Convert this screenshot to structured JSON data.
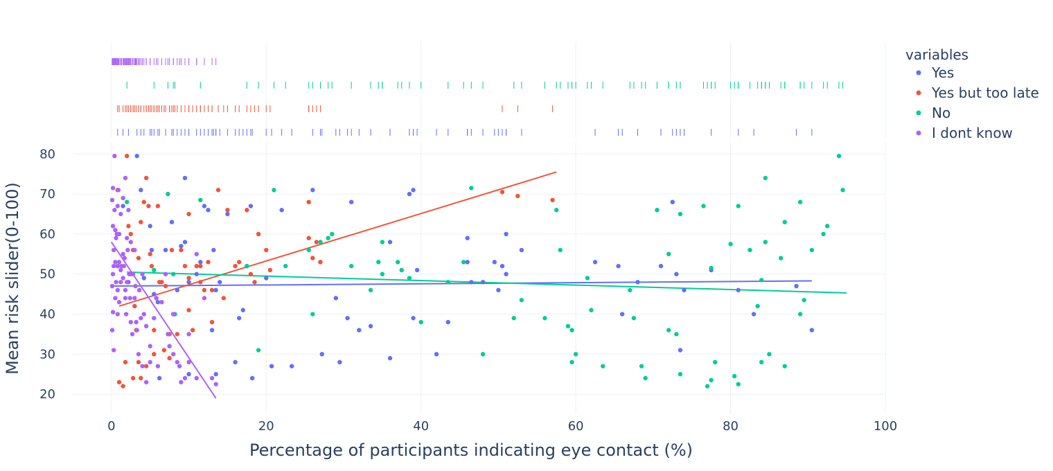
{
  "chart_data": {
    "type": "scatter",
    "xlabel": "Percentage of participants indicating eye contact (%)",
    "ylabel": "Mean risk slider(0-100)",
    "xlim": [
      -5,
      100
    ],
    "ylim": [
      15,
      83
    ],
    "xticks": [
      "0",
      "20",
      "40",
      "60",
      "80",
      "100"
    ],
    "xtick_values": [
      0,
      20,
      40,
      60,
      80,
      100
    ],
    "yticks": [
      "20",
      "30",
      "40",
      "50",
      "60",
      "70",
      "80"
    ],
    "ytick_values": [
      20,
      30,
      40,
      50,
      60,
      70,
      80
    ],
    "grid": true,
    "legend_title": "variables",
    "legend_position": "right",
    "marginal": "rug",
    "series": [
      {
        "name": "Yes",
        "color": "#636efa",
        "trendline": [
          [
            0.3,
            47.0
          ],
          [
            90.5,
            48.3
          ]
        ],
        "points": [
          [
            0.8,
            52
          ],
          [
            1.5,
            67
          ],
          [
            2.2,
            48
          ],
          [
            3.3,
            79.5
          ],
          [
            3.8,
            71
          ],
          [
            4.2,
            49
          ],
          [
            5,
            62
          ],
          [
            5.2,
            56
          ],
          [
            5.5,
            45
          ],
          [
            6,
            43
          ],
          [
            6.2,
            24
          ],
          [
            7,
            56
          ],
          [
            7.8,
            63
          ],
          [
            8,
            40
          ],
          [
            8.5,
            46
          ],
          [
            9,
            57
          ],
          [
            9.5,
            58
          ],
          [
            9.5,
            74
          ],
          [
            10,
            25
          ],
          [
            10,
            48
          ],
          [
            11,
            50
          ],
          [
            11.5,
            53
          ],
          [
            12,
            67
          ],
          [
            12.5,
            66
          ],
          [
            13,
            36
          ],
          [
            13.2,
            56
          ],
          [
            13.5,
            46
          ],
          [
            13.5,
            25
          ],
          [
            14,
            48
          ],
          [
            15,
            65
          ],
          [
            16,
            28
          ],
          [
            16.5,
            39
          ],
          [
            17,
            41
          ],
          [
            17.5,
            52
          ],
          [
            18,
            67
          ],
          [
            18.2,
            24
          ],
          [
            20,
            49
          ],
          [
            20.7,
            27
          ],
          [
            22,
            66
          ],
          [
            23.3,
            27
          ],
          [
            26,
            71
          ],
          [
            27,
            53
          ],
          [
            27.2,
            30
          ],
          [
            29,
            44
          ],
          [
            29.5,
            28
          ],
          [
            30.5,
            39
          ],
          [
            31,
            68
          ],
          [
            32,
            36
          ],
          [
            33.5,
            37
          ],
          [
            36,
            29
          ],
          [
            36,
            58
          ],
          [
            38.5,
            70
          ],
          [
            39,
            71
          ],
          [
            39.5,
            51
          ],
          [
            39,
            39
          ],
          [
            42,
            30
          ],
          [
            43.5,
            38
          ],
          [
            46,
            59
          ],
          [
            46.5,
            48
          ],
          [
            46,
            53
          ],
          [
            48,
            48
          ],
          [
            49.5,
            53
          ],
          [
            50.5,
            52
          ],
          [
            51,
            60
          ],
          [
            50,
            46
          ],
          [
            51,
            50
          ],
          [
            53,
            56
          ],
          [
            62.5,
            53
          ],
          [
            65.5,
            52
          ],
          [
            66,
            40
          ],
          [
            68,
            48
          ],
          [
            71,
            52
          ],
          [
            72.5,
            68
          ],
          [
            73,
            50
          ],
          [
            73.5,
            31
          ],
          [
            74,
            46
          ],
          [
            77.5,
            51
          ],
          [
            81,
            46
          ],
          [
            83,
            40
          ],
          [
            88.5,
            47
          ],
          [
            90.5,
            36
          ]
        ]
      },
      {
        "name": "Yes but too late",
        "color": "#ef553b",
        "trendline": [
          [
            1,
            42
          ],
          [
            57.5,
            75.5
          ]
        ],
        "points": [
          [
            0.8,
            71
          ],
          [
            1,
            23
          ],
          [
            1.5,
            22
          ],
          [
            1.8,
            28
          ],
          [
            2,
            79.5
          ],
          [
            2.2,
            62
          ],
          [
            2.5,
            60
          ],
          [
            2.8,
            56
          ],
          [
            2.5,
            50
          ],
          [
            2.8,
            24
          ],
          [
            3,
            42
          ],
          [
            3.2,
            36
          ],
          [
            3.5,
            54
          ],
          [
            3.5,
            28
          ],
          [
            3.8,
            63
          ],
          [
            3.8,
            24
          ],
          [
            4.2,
            68
          ],
          [
            4.5,
            74
          ],
          [
            4.5,
            27
          ],
          [
            4.8,
            67
          ],
          [
            5,
            55
          ],
          [
            5.2,
            52
          ],
          [
            5.5,
            36
          ],
          [
            5.5,
            30
          ],
          [
            5.8,
            44
          ],
          [
            6,
            67
          ],
          [
            6.2,
            48
          ],
          [
            6.5,
            48
          ],
          [
            6.8,
            31
          ],
          [
            7,
            47
          ],
          [
            7.5,
            29
          ],
          [
            7.5,
            35
          ],
          [
            7.8,
            56
          ],
          [
            8,
            40
          ],
          [
            8.2,
            40
          ],
          [
            8.5,
            35
          ],
          [
            9,
            56
          ],
          [
            9.5,
            52
          ],
          [
            10,
            65
          ],
          [
            10,
            41
          ],
          [
            10,
            49
          ],
          [
            10.5,
            36
          ],
          [
            11,
            52
          ],
          [
            11.5,
            48
          ],
          [
            11.5,
            52
          ],
          [
            12,
            46
          ],
          [
            12.5,
            53
          ],
          [
            13,
            46
          ],
          [
            13,
            38
          ],
          [
            13.8,
            71
          ],
          [
            14.5,
            44
          ],
          [
            15,
            66
          ],
          [
            16,
            52
          ],
          [
            16.5,
            53
          ],
          [
            17.5,
            66
          ],
          [
            18,
            50
          ],
          [
            18.5,
            48
          ],
          [
            19,
            60
          ],
          [
            20,
            56
          ],
          [
            20.5,
            51
          ],
          [
            25.5,
            68
          ],
          [
            25.5,
            59
          ],
          [
            26,
            54
          ],
          [
            26.5,
            58
          ],
          [
            27,
            53
          ],
          [
            50.5,
            70.5
          ],
          [
            52.5,
            69.5
          ],
          [
            57,
            68.5
          ]
        ]
      },
      {
        "name": "No",
        "color": "#00cc96",
        "trendline": [
          [
            2,
            50.5
          ],
          [
            95,
            45.3
          ]
        ],
        "points": [
          [
            2,
            68
          ],
          [
            5.5,
            51
          ],
          [
            7.3,
            70
          ],
          [
            8,
            50
          ],
          [
            8.2,
            40
          ],
          [
            11.5,
            68.5
          ],
          [
            17.5,
            52
          ],
          [
            19,
            31
          ],
          [
            21,
            71
          ],
          [
            22.5,
            52
          ],
          [
            25.5,
            56
          ],
          [
            26,
            40
          ],
          [
            27,
            58
          ],
          [
            28,
            59
          ],
          [
            28.5,
            60
          ],
          [
            31,
            52
          ],
          [
            33.5,
            46
          ],
          [
            34.5,
            53
          ],
          [
            35,
            58
          ],
          [
            35,
            50
          ],
          [
            37,
            53
          ],
          [
            37.5,
            51
          ],
          [
            38.5,
            49
          ],
          [
            40,
            38
          ],
          [
            43.5,
            48
          ],
          [
            45.5,
            53
          ],
          [
            46.5,
            71.5
          ],
          [
            48,
            30
          ],
          [
            52,
            39
          ],
          [
            53,
            43.5
          ],
          [
            56,
            39
          ],
          [
            57.5,
            66
          ],
          [
            58,
            56
          ],
          [
            59,
            37
          ],
          [
            59.5,
            28
          ],
          [
            59.5,
            36
          ],
          [
            60,
            30
          ],
          [
            61.5,
            49
          ],
          [
            62,
            41
          ],
          [
            63.5,
            27
          ],
          [
            67,
            46
          ],
          [
            67.5,
            39
          ],
          [
            68.5,
            27
          ],
          [
            69,
            24
          ],
          [
            70.5,
            66
          ],
          [
            72,
            55
          ],
          [
            72,
            36
          ],
          [
            73,
            35
          ],
          [
            73.5,
            65
          ],
          [
            73.5,
            25
          ],
          [
            76.5,
            67
          ],
          [
            77.5,
            51.5
          ],
          [
            77,
            22
          ],
          [
            77.5,
            23.5
          ],
          [
            78,
            28
          ],
          [
            80,
            57.5
          ],
          [
            80.5,
            24.5
          ],
          [
            81,
            22.5
          ],
          [
            81,
            67
          ],
          [
            82.5,
            56
          ],
          [
            83.5,
            42
          ],
          [
            84,
            48.5
          ],
          [
            84.5,
            58
          ],
          [
            84.5,
            74
          ],
          [
            84,
            28
          ],
          [
            85,
            30
          ],
          [
            86.5,
            54
          ],
          [
            87,
            27
          ],
          [
            87,
            63
          ],
          [
            89,
            68
          ],
          [
            89,
            40
          ],
          [
            89.5,
            43.5
          ],
          [
            90.5,
            56
          ],
          [
            92,
            60
          ],
          [
            92.5,
            62
          ],
          [
            94,
            79.5
          ],
          [
            94.5,
            71
          ]
        ]
      },
      {
        "name": "I dont know",
        "color": "#ab63fa",
        "trendline": [
          [
            0,
            58
          ],
          [
            13.5,
            19
          ]
        ],
        "points": [
          [
            0.1,
            68.5
          ],
          [
            0.1,
            47
          ],
          [
            0.1,
            36
          ],
          [
            0.2,
            71.5
          ],
          [
            0.2,
            62
          ],
          [
            0.2,
            50
          ],
          [
            0.2,
            40.5
          ],
          [
            0.3,
            52
          ],
          [
            0.3,
            56
          ],
          [
            0.3,
            31
          ],
          [
            0.4,
            79.5
          ],
          [
            0.4,
            66
          ],
          [
            0.5,
            61
          ],
          [
            0.5,
            53
          ],
          [
            0.5,
            44
          ],
          [
            0.6,
            59
          ],
          [
            0.6,
            48
          ],
          [
            0.7,
            60
          ],
          [
            0.8,
            67
          ],
          [
            0.8,
            52
          ],
          [
            0.8,
            46
          ],
          [
            0.8,
            40
          ],
          [
            0.9,
            71
          ],
          [
            1,
            60
          ],
          [
            1,
            53
          ],
          [
            1,
            43
          ],
          [
            1.2,
            65
          ],
          [
            1.2,
            51
          ],
          [
            1.2,
            48
          ],
          [
            1.3,
            52
          ],
          [
            1.5,
            69
          ],
          [
            1.5,
            55
          ],
          [
            1.5,
            49
          ],
          [
            1.6,
            52
          ],
          [
            1.7,
            54
          ],
          [
            1.8,
            46
          ],
          [
            1.8,
            44
          ],
          [
            1.8,
            74
          ],
          [
            1.9,
            40
          ],
          [
            2,
            59
          ],
          [
            2,
            48
          ],
          [
            2.1,
            56
          ],
          [
            2.2,
            66
          ],
          [
            2.3,
            50
          ],
          [
            2.4,
            44
          ],
          [
            2.5,
            58
          ],
          [
            2.5,
            38
          ],
          [
            2.7,
            35
          ],
          [
            2.8,
            50
          ],
          [
            3,
            44
          ],
          [
            3,
            56
          ],
          [
            3.1,
            47
          ],
          [
            3.2,
            38
          ],
          [
            3.3,
            36
          ],
          [
            3.5,
            30
          ],
          [
            3.6,
            46
          ],
          [
            3.8,
            39
          ],
          [
            4,
            27
          ],
          [
            4,
            50
          ],
          [
            4.2,
            40
          ],
          [
            4.5,
            23
          ],
          [
            4.5,
            37
          ],
          [
            5,
            32
          ],
          [
            5,
            28
          ],
          [
            5.5,
            39
          ],
          [
            5.8,
            44
          ],
          [
            6,
            27
          ],
          [
            6.5,
            43
          ],
          [
            7,
            50
          ],
          [
            7.3,
            35
          ],
          [
            7.5,
            32
          ],
          [
            8,
            40
          ],
          [
            8,
            30
          ],
          [
            8.5,
            28
          ],
          [
            8.8,
            27
          ],
          [
            9,
            23
          ],
          [
            9.5,
            24
          ],
          [
            10,
            28
          ],
          [
            10,
            35
          ],
          [
            11,
            55
          ],
          [
            11,
            24
          ],
          [
            12,
            44
          ],
          [
            13,
            24
          ],
          [
            13.5,
            22.5
          ]
        ]
      }
    ]
  }
}
